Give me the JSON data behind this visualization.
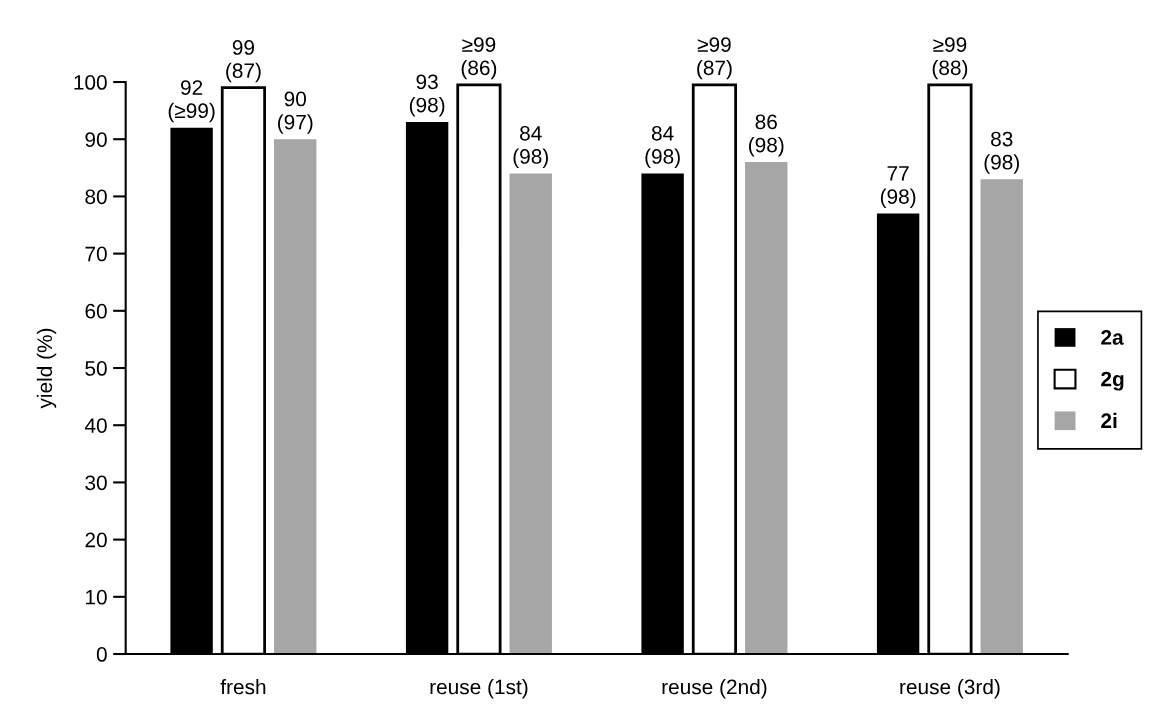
{
  "chart_data": {
    "type": "bar",
    "categories": [
      "fresh",
      "reuse (1st)",
      "reuse (2nd)",
      "reuse (3rd)"
    ],
    "ylabel": "yield (%)",
    "ylim": [
      0,
      100
    ],
    "yticks": [
      0,
      10,
      20,
      30,
      40,
      50,
      60,
      70,
      80,
      90,
      100
    ],
    "series": [
      {
        "name": "2a",
        "color": "#000000",
        "values": [
          92,
          93,
          84,
          77
        ],
        "value_labels": [
          "92\n(≥99)",
          "93\n(98)",
          "84\n(98)",
          "77\n(98)"
        ]
      },
      {
        "name": "2g",
        "color": "#ffffff",
        "values": [
          99,
          99.5,
          99.5,
          99.5
        ],
        "value_labels": [
          "99\n(87)",
          "≥99\n(86)",
          "≥99\n(87)",
          "≥99\n(88)"
        ]
      },
      {
        "name": "2i",
        "color": "#a6a6a6",
        "values": [
          90,
          84,
          86,
          83
        ],
        "value_labels": [
          "90\n(97)",
          "84\n(98)",
          "86\n(98)",
          "83\n(98)"
        ]
      }
    ],
    "legend": "right",
    "grid": false
  }
}
